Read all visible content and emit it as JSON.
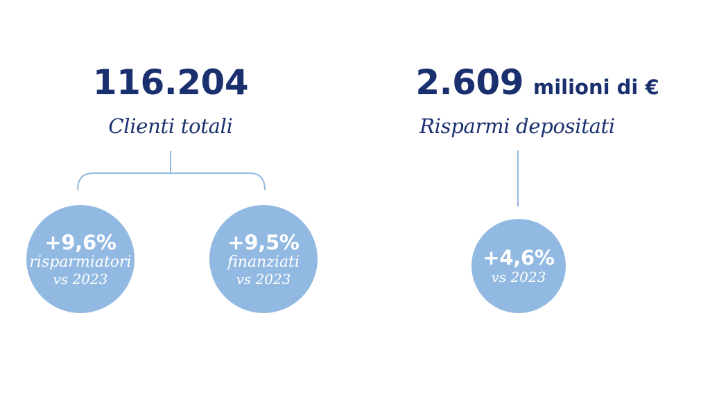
{
  "clients": {
    "value": "116.204",
    "caption": "Clienti totali",
    "savers": {
      "change": "+9,6%",
      "label": "risparmiatori",
      "comparison": "vs 2023"
    },
    "financed": {
      "change": "+9,5%",
      "label": "finanziati",
      "comparison": "vs 2023"
    }
  },
  "savings": {
    "value": "2.609",
    "unit": "milioni di €",
    "caption": "Risparmi depositati",
    "change": {
      "change": "+4,6%",
      "comparison": "vs 2023"
    }
  },
  "colors": {
    "text": "#1a2f6e",
    "bubble": "#92b9e1",
    "connector": "#92b9e1"
  }
}
